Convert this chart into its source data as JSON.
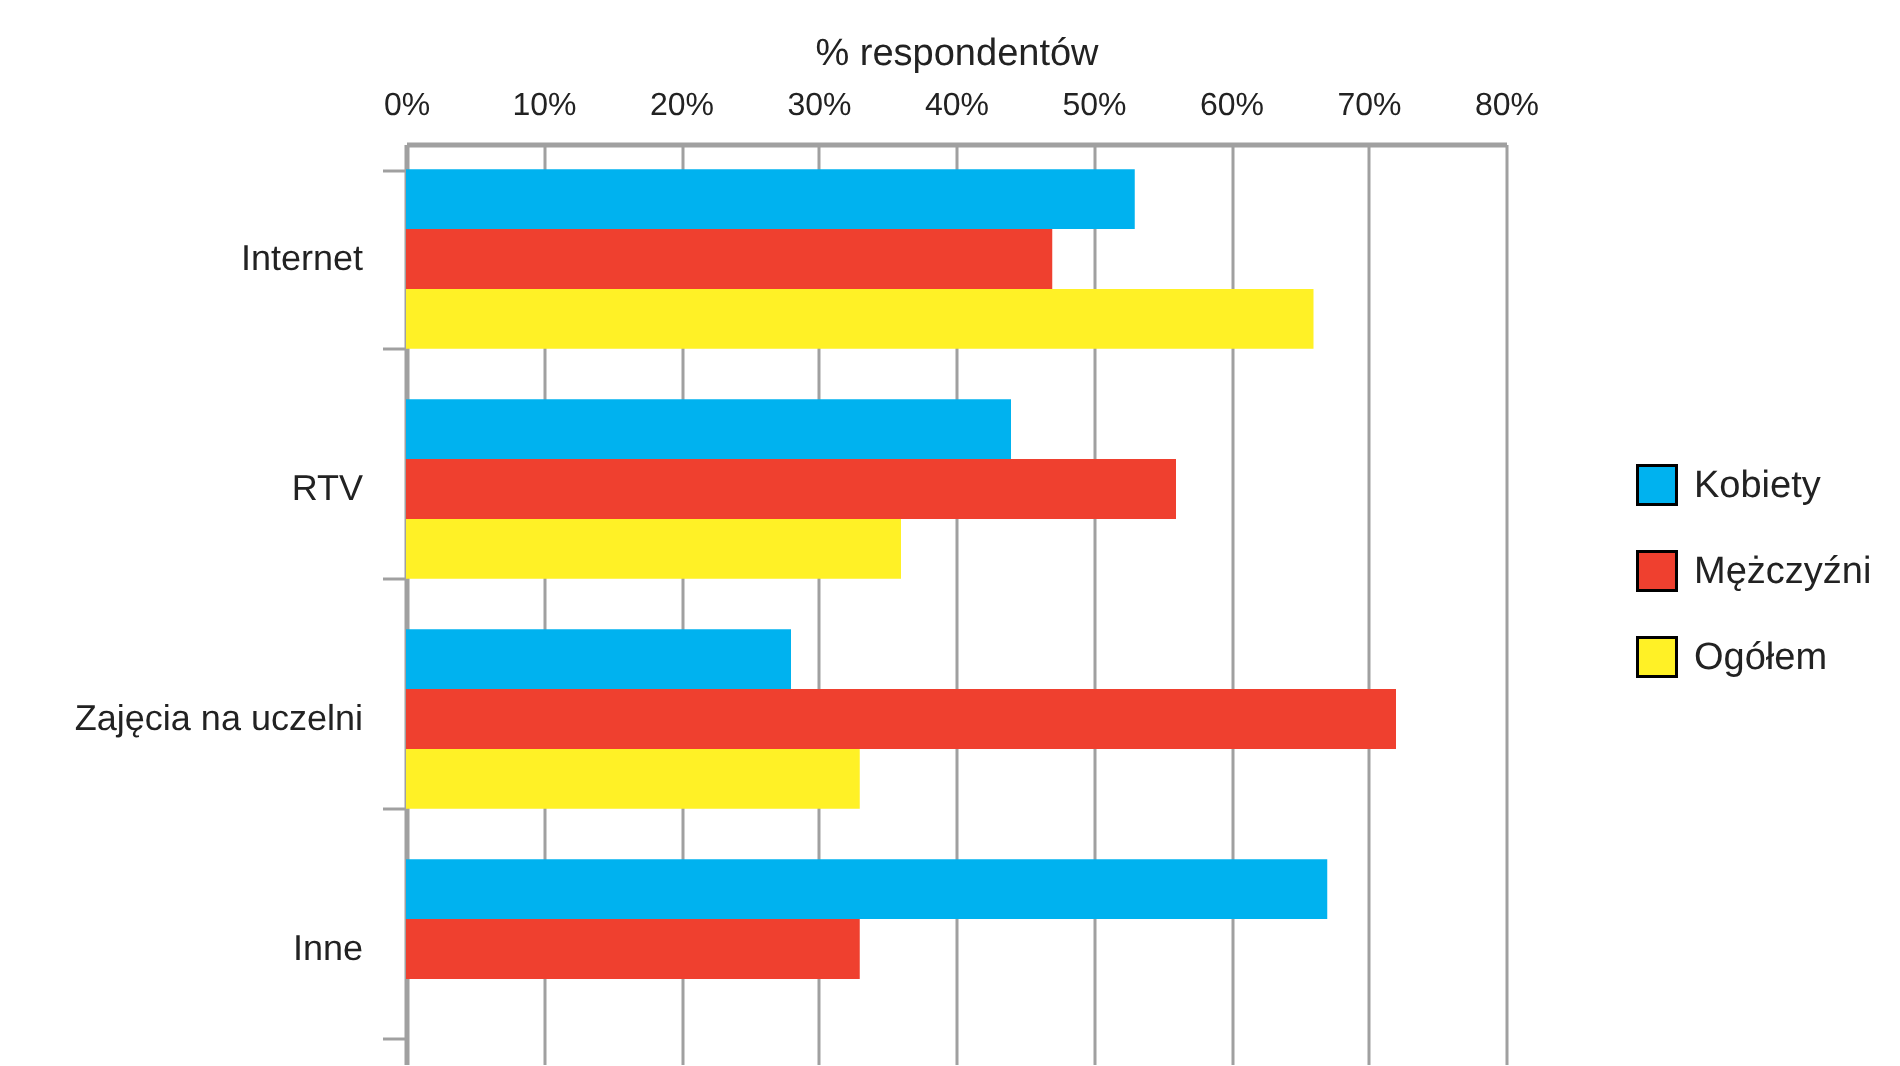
{
  "chart_data": {
    "type": "bar",
    "orientation": "horizontal",
    "categories": [
      "Internet",
      "RTV",
      "Zajęcia na uczelni",
      "Inne"
    ],
    "series": [
      {
        "name": "Kobiety",
        "color": "#00b2ef",
        "values": [
          53,
          44,
          28,
          67
        ]
      },
      {
        "name": "Mężczyźni",
        "color": "#ef402f",
        "values": [
          47,
          56,
          72,
          33
        ]
      },
      {
        "name": "Ogółem",
        "color": "#fff126",
        "values": [
          66,
          36,
          33,
          null
        ]
      }
    ],
    "xlabel": "% respondentów",
    "xlim": [
      0,
      80
    ],
    "xticks": [
      {
        "value": 0,
        "label": "0%"
      },
      {
        "value": 10,
        "label": "10%"
      },
      {
        "value": 20,
        "label": "20%"
      },
      {
        "value": 30,
        "label": "30%"
      },
      {
        "value": 40,
        "label": "40%"
      },
      {
        "value": 50,
        "label": "50%"
      },
      {
        "value": 60,
        "label": "60%"
      },
      {
        "value": 70,
        "label": "70%"
      },
      {
        "value": 80,
        "label": "80%"
      }
    ],
    "grid": "x",
    "legend": "right"
  }
}
